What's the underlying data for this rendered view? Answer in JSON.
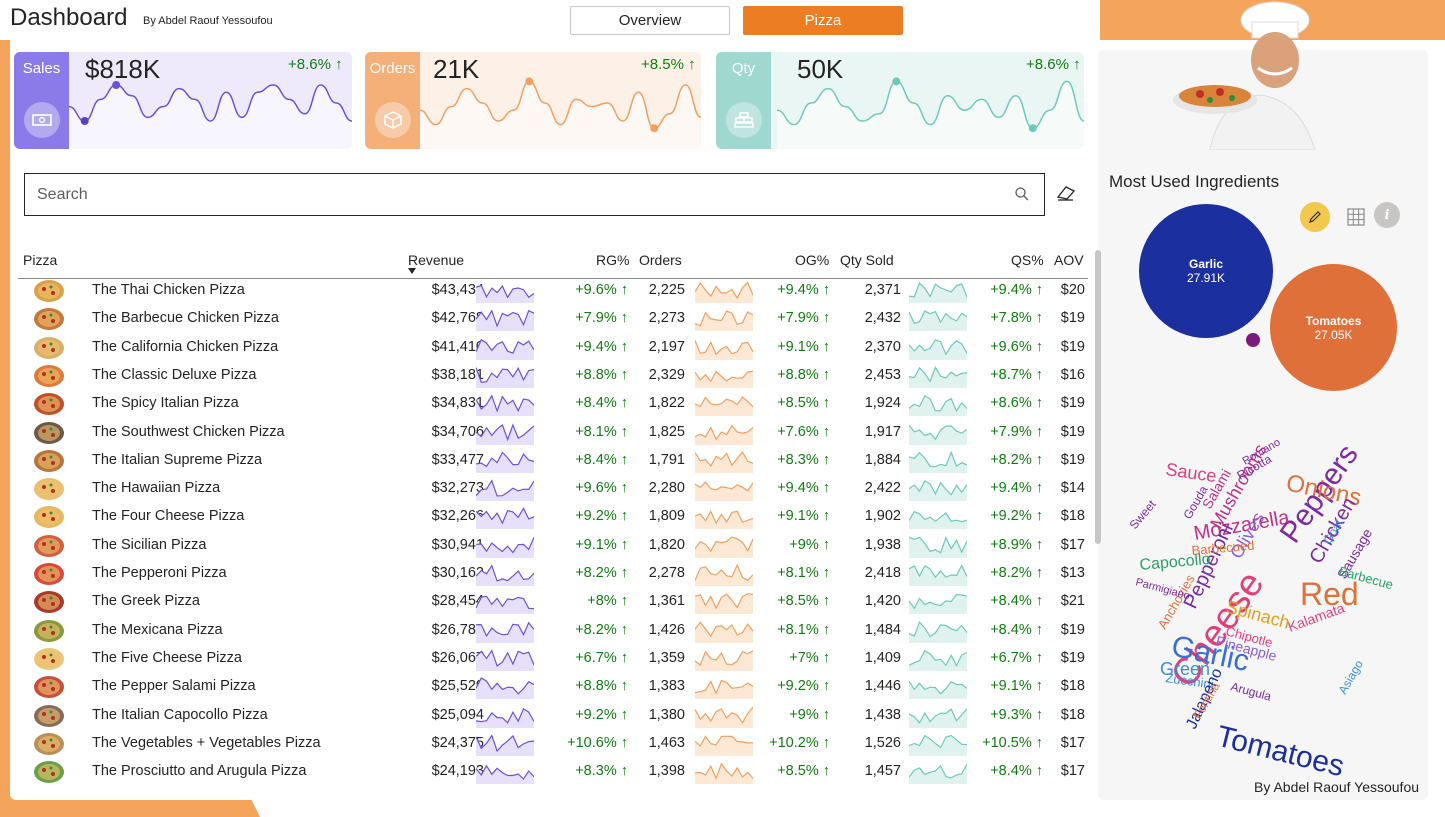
{
  "header": {
    "title": "Dashboard",
    "byline": "By Abdel Raouf Yessoufou",
    "tabs": [
      {
        "label": "Overview",
        "active": false
      },
      {
        "label": "Pizza",
        "active": true
      }
    ]
  },
  "kpis": [
    {
      "label": "Sales",
      "value": "$818K",
      "delta": "+8.6% ↑",
      "color": "#8b7be8",
      "line": "#6a52d9",
      "fill": "#eeeafc",
      "icon": "money-icon"
    },
    {
      "label": "Orders",
      "value": "21K",
      "delta": "+8.5% ↑",
      "color": "#f5b07a",
      "line": "#f0a060",
      "fill": "#fdf0e6",
      "icon": "box-icon"
    },
    {
      "label": "Qty",
      "value": "50K",
      "delta": "+8.6% ↑",
      "color": "#9fd8cf",
      "line": "#6ec9bb",
      "fill": "#eaf6f4",
      "icon": "stack-icon"
    }
  ],
  "search": {
    "placeholder": "Search"
  },
  "table": {
    "columns": {
      "pizza": "Pizza",
      "revenue": "Revenue",
      "rg": "RG%",
      "orders": "Orders",
      "og": "OG%",
      "qty": "Qty Sold",
      "qs": "QS%",
      "aov": "AOV"
    },
    "rows": [
      {
        "name": "The Thai Chicken Pizza",
        "revenue": "$43,434",
        "rg": "+9.6% ↑",
        "orders": "2,225",
        "og": "+9.4% ↑",
        "qty": "2,371",
        "qs": "+9.4% ↑",
        "aov": "$20"
      },
      {
        "name": "The Barbecue Chicken Pizza",
        "revenue": "$42,768",
        "rg": "+7.9% ↑",
        "orders": "2,273",
        "og": "+7.9% ↑",
        "qty": "2,432",
        "qs": "+7.8% ↑",
        "aov": "$19"
      },
      {
        "name": "The California Chicken Pizza",
        "revenue": "$41,410",
        "rg": "+9.4% ↑",
        "orders": "2,197",
        "og": "+9.1% ↑",
        "qty": "2,370",
        "qs": "+9.6% ↑",
        "aov": "$19"
      },
      {
        "name": "The Classic Deluxe Pizza",
        "revenue": "$38,181",
        "rg": "+8.8% ↑",
        "orders": "2,329",
        "og": "+8.8% ↑",
        "qty": "2,453",
        "qs": "+8.7% ↑",
        "aov": "$16"
      },
      {
        "name": "The Spicy Italian Pizza",
        "revenue": "$34,831",
        "rg": "+8.4% ↑",
        "orders": "1,822",
        "og": "+8.5% ↑",
        "qty": "1,924",
        "qs": "+8.6% ↑",
        "aov": "$19"
      },
      {
        "name": "The Southwest Chicken Pizza",
        "revenue": "$34,706",
        "rg": "+8.1% ↑",
        "orders": "1,825",
        "og": "+7.6% ↑",
        "qty": "1,917",
        "qs": "+7.9% ↑",
        "aov": "$19"
      },
      {
        "name": "The Italian Supreme Pizza",
        "revenue": "$33,477",
        "rg": "+8.4% ↑",
        "orders": "1,791",
        "og": "+8.3% ↑",
        "qty": "1,884",
        "qs": "+8.2% ↑",
        "aov": "$19"
      },
      {
        "name": "The Hawaiian Pizza",
        "revenue": "$32,273",
        "rg": "+9.6% ↑",
        "orders": "2,280",
        "og": "+9.4% ↑",
        "qty": "2,422",
        "qs": "+9.4% ↑",
        "aov": "$14"
      },
      {
        "name": "The Four Cheese Pizza",
        "revenue": "$32,266",
        "rg": "+9.2% ↑",
        "orders": "1,809",
        "og": "+9.1% ↑",
        "qty": "1,902",
        "qs": "+9.2% ↑",
        "aov": "$18"
      },
      {
        "name": "The Sicilian Pizza",
        "revenue": "$30,941",
        "rg": "+9.1% ↑",
        "orders": "1,820",
        "og": "+9% ↑",
        "qty": "1,938",
        "qs": "+8.9% ↑",
        "aov": "$17"
      },
      {
        "name": "The Pepperoni Pizza",
        "revenue": "$30,162",
        "rg": "+8.2% ↑",
        "orders": "2,278",
        "og": "+8.1% ↑",
        "qty": "2,418",
        "qs": "+8.2% ↑",
        "aov": "$13"
      },
      {
        "name": "The Greek Pizza",
        "revenue": "$28,454",
        "rg": "+8% ↑",
        "orders": "1,361",
        "og": "+8.5% ↑",
        "qty": "1,420",
        "qs": "+8.4% ↑",
        "aov": "$21"
      },
      {
        "name": "The Mexicana Pizza",
        "revenue": "$26,781",
        "rg": "+8.2% ↑",
        "orders": "1,426",
        "og": "+8.1% ↑",
        "qty": "1,484",
        "qs": "+8.4% ↑",
        "aov": "$19"
      },
      {
        "name": "The Five Cheese Pizza",
        "revenue": "$26,067",
        "rg": "+6.7% ↑",
        "orders": "1,359",
        "og": "+7% ↑",
        "qty": "1,409",
        "qs": "+6.7% ↑",
        "aov": "$19"
      },
      {
        "name": "The Pepper Salami Pizza",
        "revenue": "$25,529",
        "rg": "+8.8% ↑",
        "orders": "1,383",
        "og": "+9.2% ↑",
        "qty": "1,446",
        "qs": "+9.1% ↑",
        "aov": "$18"
      },
      {
        "name": "The Italian Capocollo Pizza",
        "revenue": "$25,094",
        "rg": "+9.2% ↑",
        "orders": "1,380",
        "og": "+9% ↑",
        "qty": "1,438",
        "qs": "+9.3% ↑",
        "aov": "$18"
      },
      {
        "name": "The Vegetables + Vegetables Pizza",
        "revenue": "$24,375",
        "rg": "+10.6% ↑",
        "orders": "1,463",
        "og": "+10.2% ↑",
        "qty": "1,526",
        "qs": "+10.5% ↑",
        "aov": "$17"
      },
      {
        "name": "The Prosciutto and Arugula Pizza",
        "revenue": "$24,193",
        "rg": "+8.3% ↑",
        "orders": "1,398",
        "og": "+8.5% ↑",
        "qty": "1,457",
        "qs": "+8.4% ↑",
        "aov": "$17"
      }
    ]
  },
  "ingredients": {
    "title": "Most Used Ingredients",
    "bubbles": [
      {
        "name": "Garlic",
        "value": "27.91K",
        "color": "#1b2f9e"
      },
      {
        "name": "Tomatoes",
        "value": "27.05K",
        "color": "#e0703a"
      }
    ],
    "wordcloud": [
      {
        "word": "Tomatoes",
        "color": "#1b2f9e"
      },
      {
        "word": "Cheese",
        "color": "#e0407a"
      },
      {
        "word": "Garlic",
        "color": "#3a6fd8"
      },
      {
        "word": "Red",
        "color": "#e0703a"
      },
      {
        "word": "Peppers",
        "color": "#7b2ca0"
      },
      {
        "word": "Onions",
        "color": "#e0703a"
      },
      {
        "word": "Chicken",
        "color": "#7b2ca0"
      },
      {
        "word": "Mozzarella",
        "color": "#c0308a"
      },
      {
        "word": "Green",
        "color": "#3a8fd8"
      },
      {
        "word": "Mushrooms",
        "color": "#c0308a"
      },
      {
        "word": "Pepperoni",
        "color": "#7b2ca0"
      },
      {
        "word": "Olives",
        "color": "#8a60d8"
      },
      {
        "word": "Spinach",
        "color": "#e0a020"
      },
      {
        "word": "Sauce",
        "color": "#e0407a"
      },
      {
        "word": "Capocollo",
        "color": "#2aa06a"
      },
      {
        "word": "Kalamata",
        "color": "#e0407a"
      },
      {
        "word": "Sausage",
        "color": "#7b2ca0"
      },
      {
        "word": "Pineapple",
        "color": "#8a60d8"
      },
      {
        "word": "Barbecued",
        "color": "#e0703a"
      },
      {
        "word": "Salami",
        "color": "#c0308a"
      },
      {
        "word": "Anchovies",
        "color": "#e0703a"
      },
      {
        "word": "Zucchini",
        "color": "#3a8fd8"
      },
      {
        "word": "Jalapeno",
        "color": "#1b2f9e"
      },
      {
        "word": "Chipotle",
        "color": "#e0407a"
      },
      {
        "word": "Arugula",
        "color": "#7b2ca0"
      },
      {
        "word": "Goat",
        "color": "#3a8fd8"
      },
      {
        "word": "Barbecue",
        "color": "#2aa06a"
      },
      {
        "word": "Ricotta",
        "color": "#7b2ca0"
      },
      {
        "word": "Romano",
        "color": "#7b2ca0"
      },
      {
        "word": "Fontina",
        "color": "#e0703a"
      },
      {
        "word": "Gouda",
        "color": "#7b2ca0"
      },
      {
        "word": "Sweet",
        "color": "#7b2ca0"
      },
      {
        "word": "Asiago",
        "color": "#3a8fd8"
      },
      {
        "word": "Parmigiano",
        "color": "#7b2ca0"
      }
    ]
  },
  "footer": {
    "byline": "By Abdel Raouf Yessoufou"
  }
}
